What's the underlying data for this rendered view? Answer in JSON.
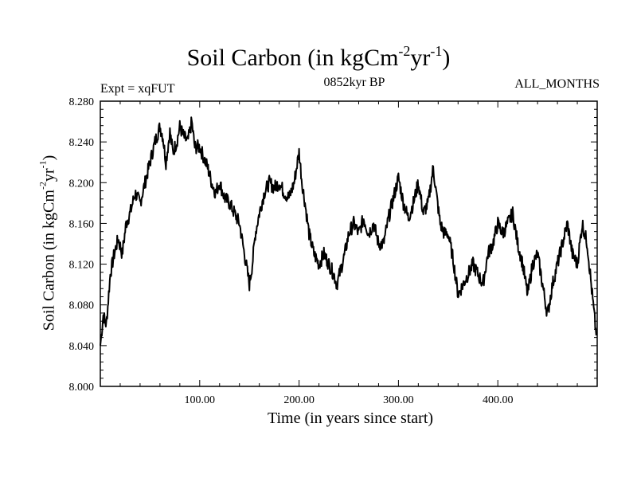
{
  "chart_data": {
    "type": "line",
    "title_text": "Soil Carbon (in kgCm",
    "title_exp1": "-2",
    "title_mid": "yr",
    "title_exp2": "-1",
    "title_end": ")",
    "experiment": "Expt = xqFUT",
    "subtitle": "0852kyr BP",
    "months": "ALL_MONTHS",
    "xlabel": "Time (in years since start)",
    "ylabel_text": "Soil Carbon (in kgCm",
    "ylabel_exp1": "-2",
    "ylabel_mid": "yr",
    "ylabel_exp2": "-1",
    "ylabel_end": ")",
    "xlim": [
      0,
      500
    ],
    "ylim": [
      8.0,
      8.28
    ],
    "xticks": [
      100,
      200,
      300,
      400
    ],
    "xtick_labels": [
      "100.00",
      "200.00",
      "300.00",
      "400.00"
    ],
    "yticks": [
      8.0,
      8.04,
      8.08,
      8.12,
      8.16,
      8.2,
      8.24,
      8.28
    ],
    "ytick_labels": [
      "8.000",
      "8.040",
      "8.080",
      "8.120",
      "8.160",
      "8.200",
      "8.240",
      "8.280"
    ],
    "series": [
      {
        "name": "Soil Carbon",
        "color": "#000000",
        "x": [
          0,
          3,
          6,
          10,
          14,
          18,
          22,
          26,
          30,
          35,
          40,
          45,
          50,
          55,
          60,
          63,
          66,
          70,
          73,
          77,
          80,
          84,
          88,
          92,
          95,
          100,
          104,
          108,
          112,
          116,
          120,
          125,
          130,
          135,
          140,
          145,
          150,
          153,
          156,
          160,
          165,
          170,
          175,
          180,
          185,
          190,
          195,
          200,
          203,
          206,
          210,
          215,
          220,
          225,
          230,
          235,
          238,
          242,
          246,
          250,
          255,
          260,
          265,
          270,
          275,
          280,
          285,
          290,
          295,
          300,
          305,
          310,
          315,
          320,
          325,
          330,
          335,
          338,
          342,
          346,
          350,
          355,
          360,
          365,
          370,
          375,
          380,
          385,
          390,
          395,
          400,
          405,
          410,
          415,
          420,
          425,
          430,
          435,
          440,
          445,
          450,
          455,
          460,
          465,
          470,
          475,
          480,
          485,
          490,
          495,
          499
        ],
        "y": [
          8.04,
          8.07,
          8.06,
          8.11,
          8.13,
          8.145,
          8.13,
          8.16,
          8.17,
          8.19,
          8.18,
          8.2,
          8.22,
          8.24,
          8.255,
          8.245,
          8.22,
          8.25,
          8.23,
          8.24,
          8.255,
          8.245,
          8.24,
          8.26,
          8.235,
          8.235,
          8.225,
          8.215,
          8.2,
          8.19,
          8.2,
          8.185,
          8.18,
          8.17,
          8.16,
          8.13,
          8.1,
          8.12,
          8.15,
          8.17,
          8.19,
          8.2,
          8.195,
          8.2,
          8.19,
          8.185,
          8.2,
          8.23,
          8.2,
          8.18,
          8.15,
          8.13,
          8.12,
          8.13,
          8.12,
          8.11,
          8.1,
          8.115,
          8.13,
          8.15,
          8.16,
          8.15,
          8.165,
          8.15,
          8.16,
          8.14,
          8.14,
          8.165,
          8.185,
          8.205,
          8.18,
          8.165,
          8.18,
          8.2,
          8.17,
          8.18,
          8.215,
          8.19,
          8.16,
          8.15,
          8.15,
          8.125,
          8.09,
          8.1,
          8.11,
          8.12,
          8.11,
          8.1,
          8.13,
          8.14,
          8.16,
          8.15,
          8.16,
          8.17,
          8.14,
          8.12,
          8.09,
          8.12,
          8.13,
          8.1,
          8.07,
          8.1,
          8.12,
          8.14,
          8.16,
          8.13,
          8.12,
          8.16,
          8.14,
          8.09,
          8.05
        ]
      }
    ]
  }
}
